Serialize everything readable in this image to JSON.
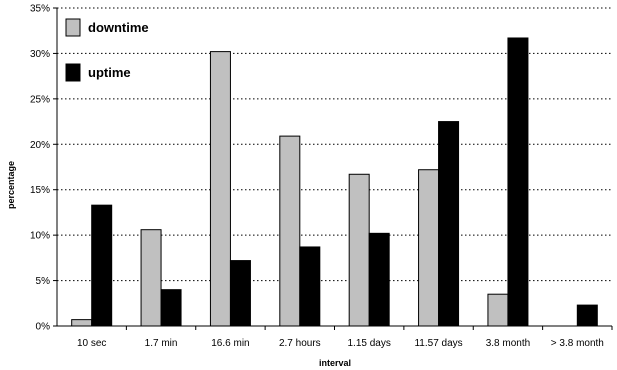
{
  "chart_data": {
    "type": "bar",
    "title": "",
    "xlabel": "interval",
    "ylabel": "percentage",
    "ylim": [
      0,
      35
    ],
    "yticks": [
      0,
      5,
      10,
      15,
      20,
      25,
      30,
      35
    ],
    "ytick_suffix": "%",
    "grid": "horizontal dotted",
    "legend_position": "top-left",
    "categories": [
      "10 sec",
      "1.7 min",
      "16.6 min",
      "2.7 hours",
      "1.15 days",
      "11.57 days",
      "3.8 month",
      "> 3.8 month"
    ],
    "series": [
      {
        "name": "downtime",
        "color": "#c0c0c0",
        "values": [
          0.7,
          10.6,
          30.2,
          20.9,
          16.7,
          17.2,
          3.5,
          0
        ]
      },
      {
        "name": "uptime",
        "color": "#000000",
        "values": [
          13.3,
          4.0,
          7.2,
          8.7,
          10.2,
          22.5,
          31.7,
          2.3
        ]
      }
    ]
  }
}
